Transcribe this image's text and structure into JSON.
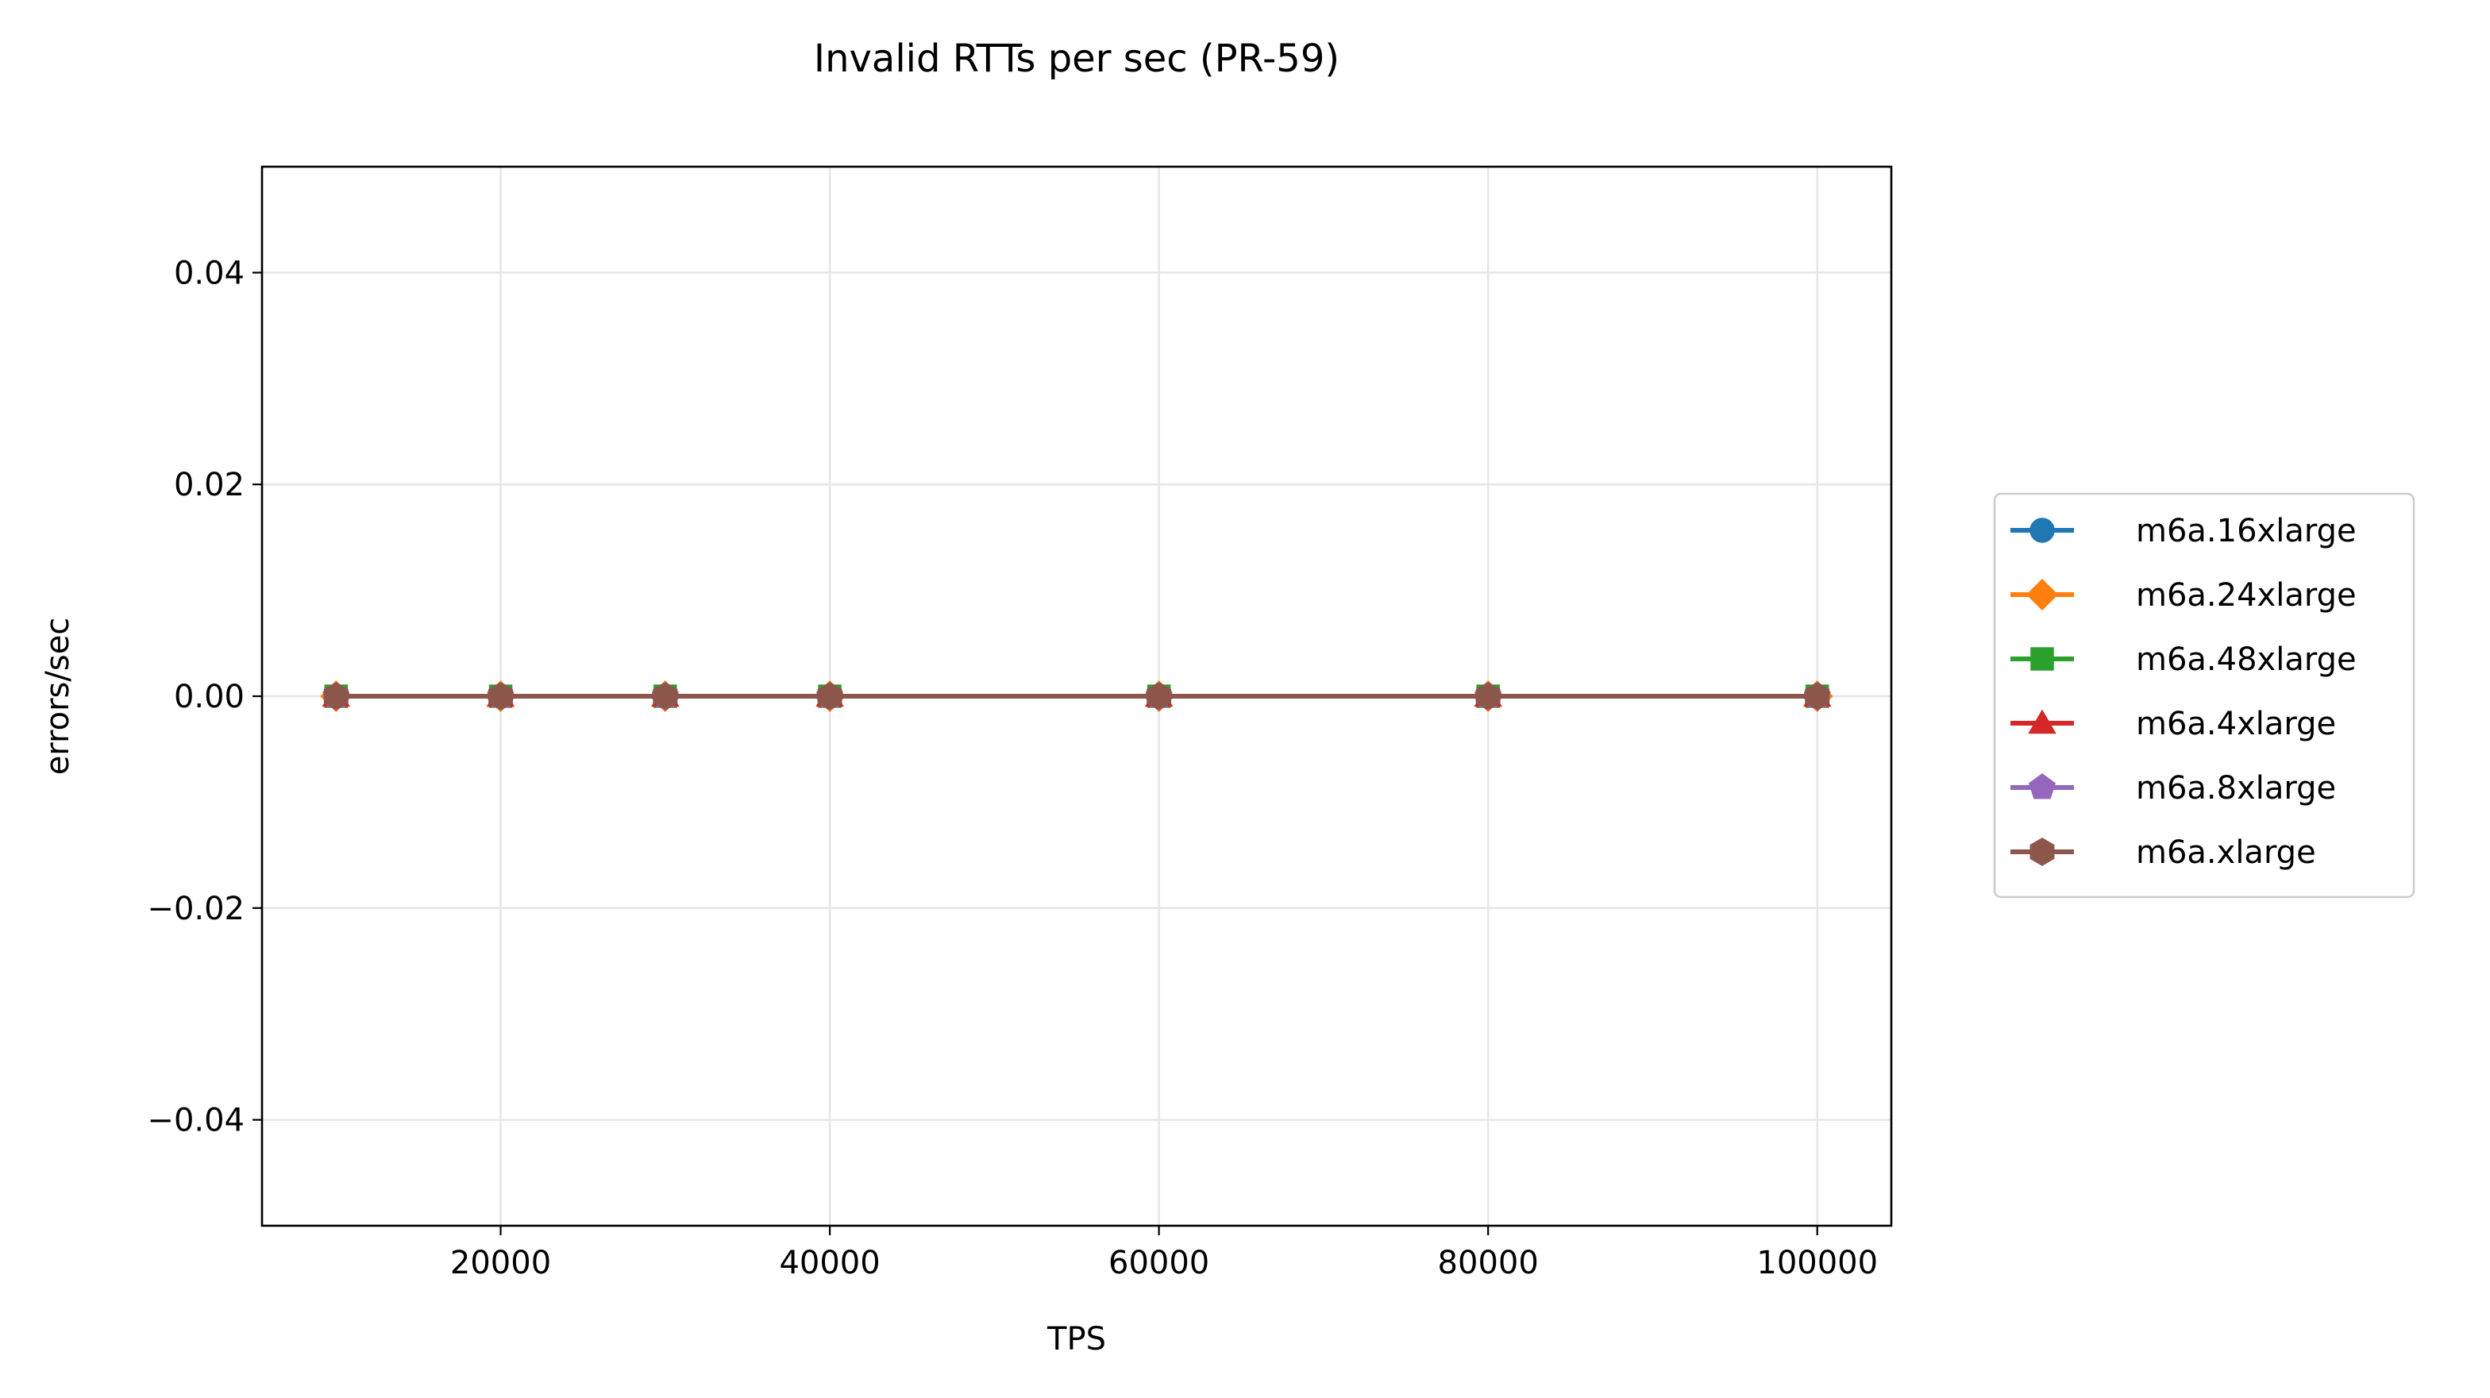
{
  "chart_data": {
    "type": "line",
    "title": "Invalid RTTs per sec (PR-59)",
    "xlabel": "TPS",
    "ylabel": "errors/sec",
    "x": [
      10000,
      20000,
      30000,
      40000,
      60000,
      80000,
      100000
    ],
    "xlim": [
      5500,
      104500
    ],
    "ylim": [
      -0.05,
      0.05
    ],
    "xticks": [
      20000,
      40000,
      60000,
      80000,
      100000
    ],
    "xtick_labels": [
      "20000",
      "40000",
      "60000",
      "80000",
      "100000"
    ],
    "yticks": [
      0.04,
      0.02,
      0.0,
      -0.02,
      -0.04
    ],
    "ytick_labels": [
      "0.04",
      "0.02",
      "0.00",
      "−0.02",
      "−0.04"
    ],
    "grid": true,
    "legend_position": "right, outside plot area",
    "series": [
      {
        "name": "m6a.16xlarge",
        "color": "#1f77b4",
        "marker": "circle",
        "values": [
          0,
          0,
          0,
          0,
          0,
          0,
          0
        ]
      },
      {
        "name": "m6a.24xlarge",
        "color": "#ff7f0e",
        "marker": "diamond",
        "values": [
          0,
          0,
          0,
          0,
          0,
          0,
          0
        ]
      },
      {
        "name": "m6a.48xlarge",
        "color": "#2ca02c",
        "marker": "square",
        "values": [
          0,
          0,
          0,
          0,
          0,
          0,
          0
        ]
      },
      {
        "name": "m6a.4xlarge",
        "color": "#d62728",
        "marker": "triangle",
        "values": [
          0,
          0,
          0,
          0,
          0,
          0,
          0
        ]
      },
      {
        "name": "m6a.8xlarge",
        "color": "#9467bd",
        "marker": "pentagon",
        "values": [
          0,
          0,
          0,
          0,
          0,
          0,
          0
        ]
      },
      {
        "name": "m6a.xlarge",
        "color": "#8c564b",
        "marker": "hexagon",
        "values": [
          0,
          0,
          0,
          0,
          0,
          0,
          0
        ]
      }
    ]
  }
}
